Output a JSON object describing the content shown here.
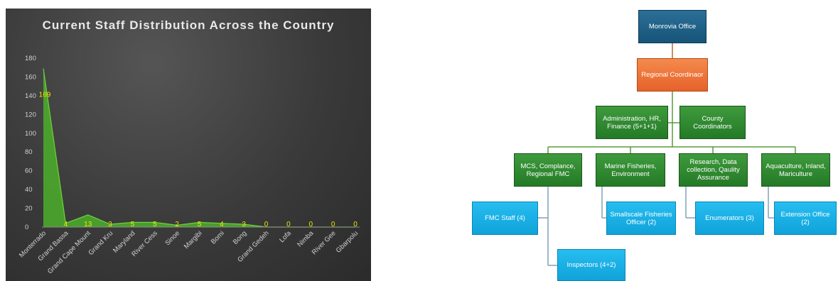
{
  "chart_data": {
    "type": "area",
    "title": "Current Staff Distribution Across the Country",
    "categories": [
      "Monterrado",
      "Grand Bassa",
      "Grand Cape Mount",
      "Grand Kru",
      "Maryland",
      "River Cess",
      "Sinoe",
      "Margibi",
      "Bomi",
      "Bong",
      "Grand Gedeh",
      "Lofa",
      "Nimba",
      "River Gee",
      "Gbarpolu"
    ],
    "values": [
      169,
      4,
      13,
      3,
      5,
      5,
      2,
      5,
      4,
      3,
      0,
      0,
      0,
      0,
      0
    ],
    "ylim": [
      0,
      180
    ],
    "yticks": [
      0,
      20,
      40,
      60,
      80,
      100,
      120,
      140,
      160,
      180
    ],
    "grid": false,
    "legend": "none",
    "xlabel": "",
    "ylabel": "",
    "colors": {
      "fill": "#4caf2a",
      "line": "#6fd23a",
      "label": "#f2e600",
      "tick": "#d0d0d0"
    }
  },
  "org_chart": {
    "top": "Monrovia Office",
    "regional": "Regional Coordinaor",
    "admin": "Administration, HR, Finance (5+1+1)",
    "county": "County Coordinators",
    "mcs": "MCS, Complance, Regional FMC",
    "marine": "Marine Fisheries, Environment",
    "research": "Research, Data collection, Qaulity Assurance",
    "aqua": "Aquaculture, Inland, Mariculture",
    "fmc_staff": "FMC Staff (4)",
    "inspectors": "Inspectors (4+2)",
    "smallscale": "Smallscale Fisheries Officer (2)",
    "enumerators": "Enumerators (3)",
    "extension": "Extension Office (2)"
  }
}
